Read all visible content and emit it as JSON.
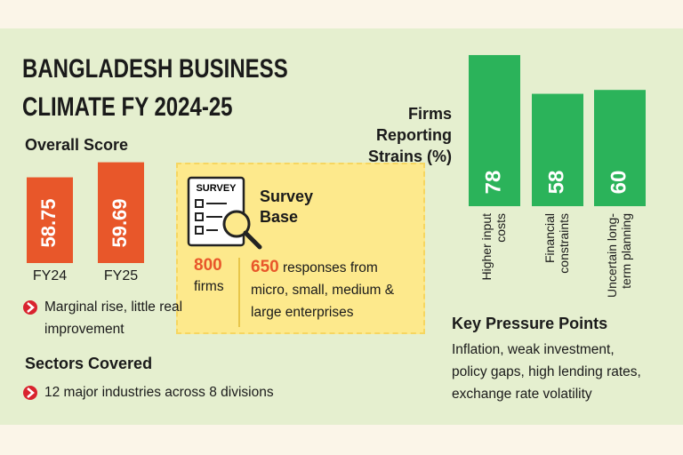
{
  "title": "BANGLADESH BUSINESS CLIMATE FY 2024-25",
  "chart_data": [
    {
      "type": "bar",
      "title": "Overall Score",
      "categories": [
        "FY24",
        "FY25"
      ],
      "values": [
        58.75,
        59.69
      ],
      "color": "#e8572a",
      "ylim": [
        53.4,
        60
      ],
      "note": "Marginal rise, little real improvement"
    },
    {
      "type": "bar",
      "title": "Firms Reporting Strains (%)",
      "categories": [
        "Higher input costs",
        "Financial constraints",
        "Uncertain long-term planning"
      ],
      "values": [
        78,
        58,
        60
      ],
      "color": "#2bb35a",
      "ylim": [
        0,
        80
      ]
    }
  ],
  "survey": {
    "icon_text": "SURVEY",
    "title": "Survey Base",
    "firms_count": 800,
    "firms_label": "firms",
    "responses_count": 650,
    "responses_label": "responses from micro, small, medium & large enterprises"
  },
  "sectors": {
    "title": "Sectors Covered",
    "text": "12 major industries across 8 divisions"
  },
  "pressure_points": {
    "title": "Key Pressure Points",
    "text": "Inflation, weak investment, policy gaps, high lending rates, exchange rate volatility"
  }
}
